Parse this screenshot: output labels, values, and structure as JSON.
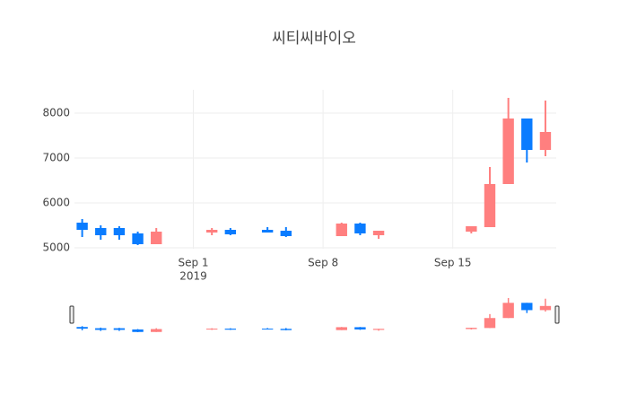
{
  "chart_data": {
    "type": "candlestick",
    "title": "씨티씨바이오",
    "x": [
      "2019-08-26",
      "2019-08-27",
      "2019-08-28",
      "2019-08-29",
      "2019-08-30",
      "2019-09-02",
      "2019-09-03",
      "2019-09-05",
      "2019-09-06",
      "2019-09-09",
      "2019-09-10",
      "2019-09-11",
      "2019-09-16",
      "2019-09-17",
      "2019-09-18",
      "2019-09-19",
      "2019-09-20"
    ],
    "open": [
      5560,
      5440,
      5440,
      5320,
      5080,
      5340,
      5400,
      5400,
      5380,
      5260,
      5540,
      5280,
      5360,
      5460,
      6420,
      7880,
      7180
    ],
    "high": [
      5640,
      5500,
      5480,
      5360,
      5440,
      5440,
      5440,
      5460,
      5460,
      5560,
      5560,
      5380,
      5480,
      6800,
      8340,
      7880,
      8280
    ],
    "low": [
      5240,
      5180,
      5180,
      5060,
      5080,
      5280,
      5280,
      5340,
      5240,
      5260,
      5280,
      5200,
      5320,
      5460,
      6420,
      6900,
      7040
    ],
    "close": [
      5400,
      5280,
      5280,
      5080,
      5360,
      5400,
      5300,
      5340,
      5260,
      5540,
      5320,
      5380,
      5480,
      6420,
      7880,
      7180,
      7580
    ],
    "increasing_color": "#ff7f7f",
    "decreasing_color": "#0a7cff",
    "xlim": [
      "2019-08-25T14:00:00Z",
      "2019-09-20T14:00:00Z"
    ],
    "xticks": [
      {
        "value": "2019-09-01",
        "label": "Sep 1"
      },
      {
        "value": "2019-09-08",
        "label": "Sep 8"
      },
      {
        "value": "2019-09-15",
        "label": "Sep 15"
      }
    ],
    "x_year_label": "2019",
    "ylim": [
      4980,
      8520
    ],
    "yticks": [
      5000,
      6000,
      7000,
      8000
    ],
    "grid": true,
    "rangeslider": true
  }
}
